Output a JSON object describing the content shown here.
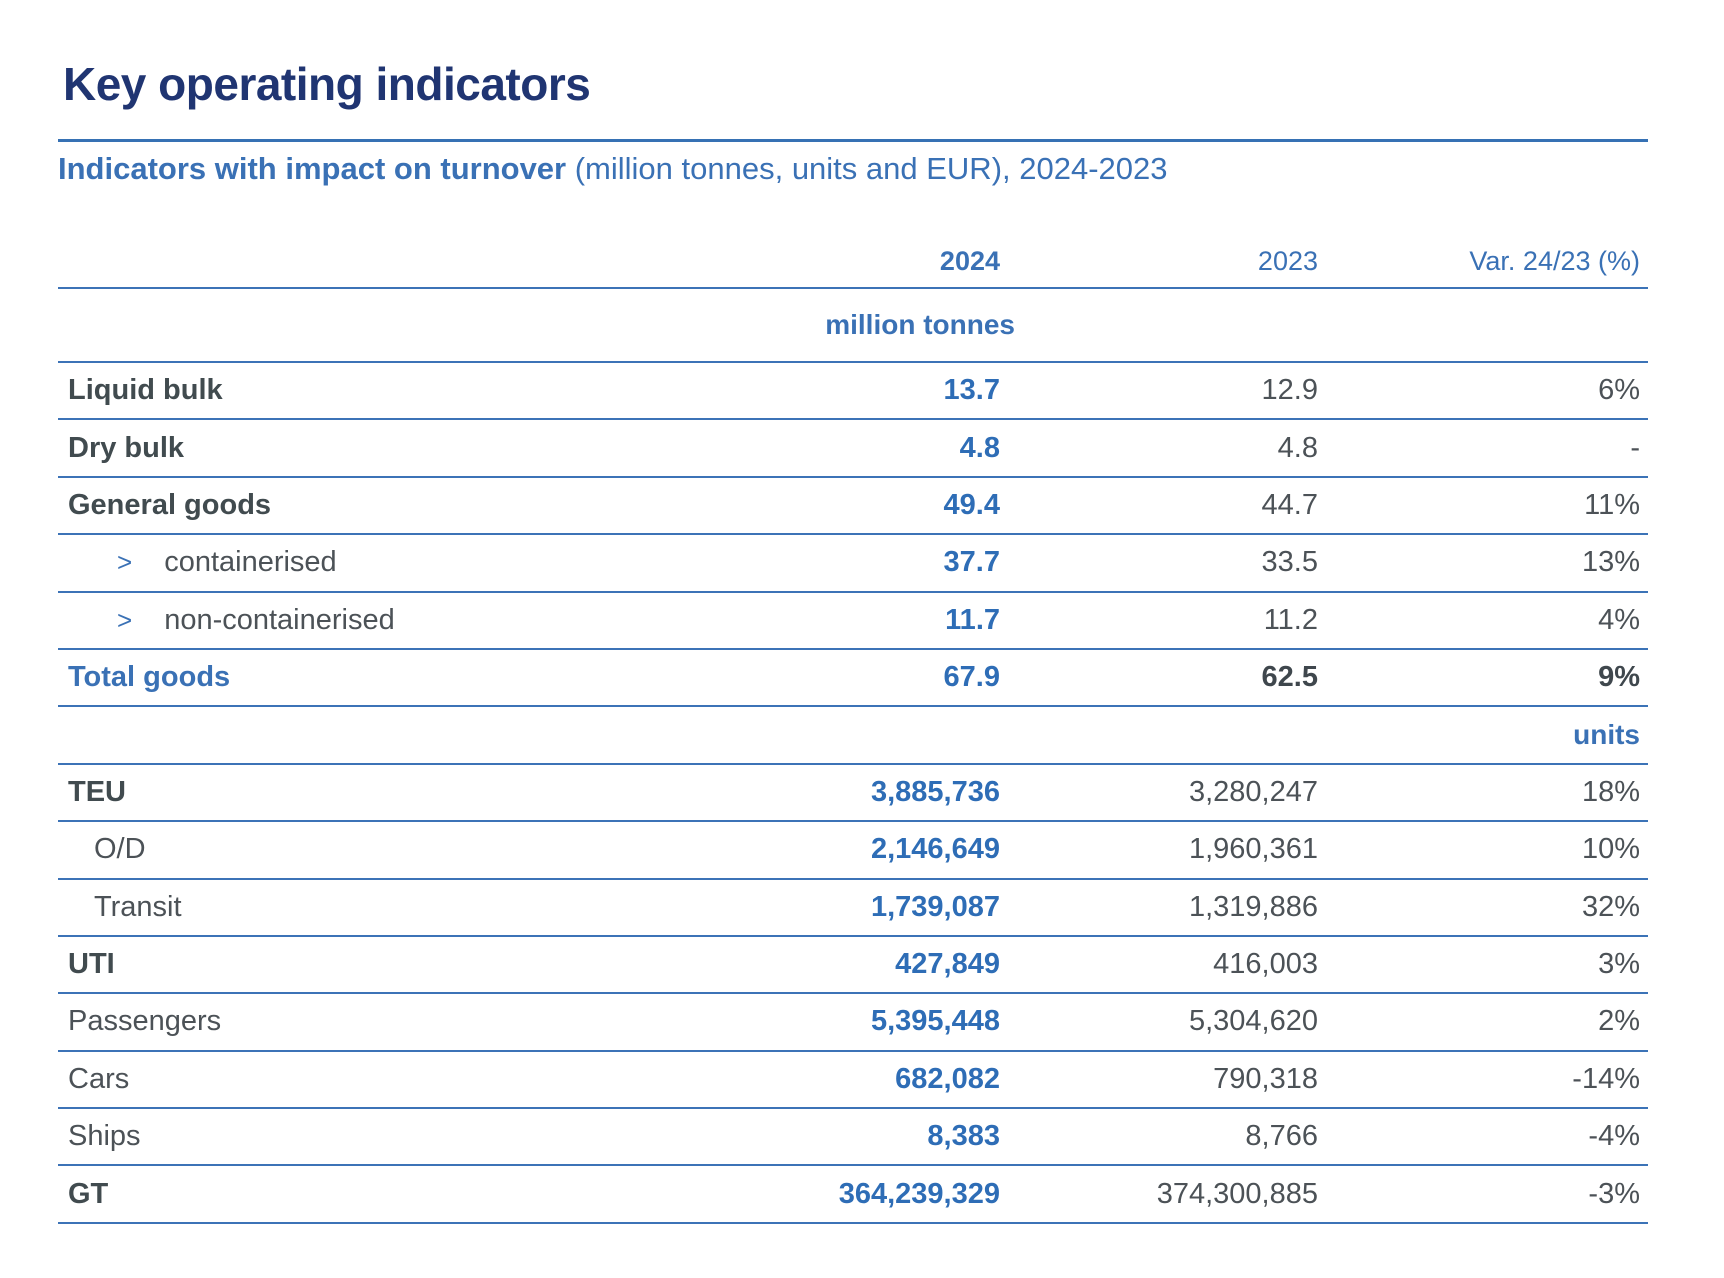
{
  "page": {
    "title": "Key operating indicators",
    "subtitle": {
      "bold": "Indicators with impact on turnover",
      "rest": " (million tonnes, units and EUR), 2024-2023"
    }
  },
  "accent_colors": {
    "title_navy": "#203572",
    "heading_blue": "#3a71b5",
    "value_blue": "#2e6db6",
    "label_gray": "#414b4f",
    "value_gray": "#4c5257",
    "rule_blue": "#3c73b7"
  },
  "icons": {
    "chevron": ">"
  },
  "table": {
    "columns": [
      "2024",
      "2023",
      "Var. 24/23 (%)"
    ],
    "sections": {
      "tonnes": "million tonnes",
      "units": "units"
    },
    "rows": [
      {
        "label": "Liquid bulk",
        "v2024": "13.7",
        "v2023": "12.9",
        "var": "6%"
      },
      {
        "label": "Dry bulk",
        "v2024": "4.8",
        "v2023": "4.8",
        "var": "-"
      },
      {
        "label": "General goods",
        "v2024": "49.4",
        "v2023": "44.7",
        "var": "11%"
      },
      {
        "label": "containerised",
        "v2024": "37.7",
        "v2023": "33.5",
        "var": "13%"
      },
      {
        "label": "non-containerised",
        "v2024": "11.7",
        "v2023": "11.2",
        "var": "4%"
      },
      {
        "label": "Total goods",
        "v2024": "67.9",
        "v2023": "62.5",
        "var": "9%"
      },
      {
        "label": "TEU",
        "v2024": "3,885,736",
        "v2023": "3,280,247",
        "var": "18%"
      },
      {
        "label": "O/D",
        "v2024": "2,146,649",
        "v2023": "1,960,361",
        "var": "10%"
      },
      {
        "label": "Transit",
        "v2024": "1,739,087",
        "v2023": "1,319,886",
        "var": "32%"
      },
      {
        "label": "UTI",
        "v2024": "427,849",
        "v2023": "416,003",
        "var": "3%"
      },
      {
        "label": "Passengers",
        "v2024": "5,395,448",
        "v2023": "5,304,620",
        "var": "2%"
      },
      {
        "label": "Cars",
        "v2024": "682,082",
        "v2023": "790,318",
        "var": "-14%"
      },
      {
        "label": "Ships",
        "v2024": "8,383",
        "v2023": "8,766",
        "var": "-4%"
      },
      {
        "label": "GT",
        "v2024": "364,239,329",
        "v2023": "374,300,885",
        "var": "-3%"
      }
    ]
  }
}
